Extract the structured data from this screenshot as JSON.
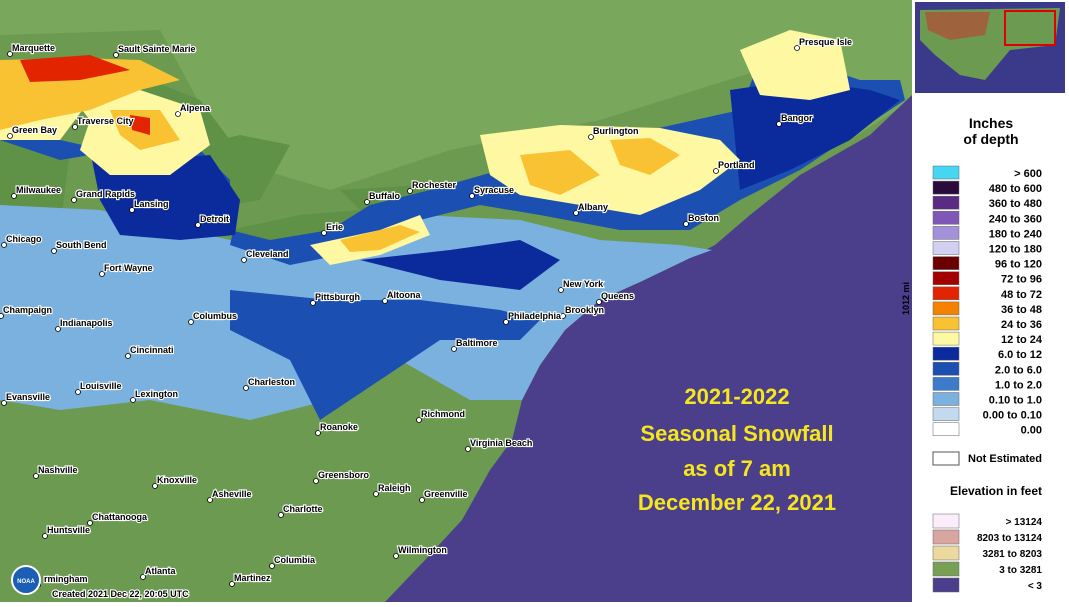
{
  "map": {
    "title_lines": [
      "2021-2022",
      "Seasonal Snowfall",
      "as of 7 am",
      "December 22, 2021"
    ],
    "cities": [
      "Marquette",
      "Sault Sainte Marie",
      "Alpena",
      "Traverse City",
      "Green Bay",
      "Milwaukee",
      "Grand Rapids",
      "Lansing",
      "Detroit",
      "Chicago",
      "South Bend",
      "Fort Wayne",
      "Cleveland",
      "Erie",
      "Buffalo",
      "Rochester",
      "Syracuse",
      "Albany",
      "Burlington",
      "Portland",
      "Bangor",
      "Presque Isle",
      "Boston",
      "New York",
      "Queens",
      "Brooklyn",
      "Philadelphia",
      "Baltimore",
      "Pittsburgh",
      "Altoona",
      "Columbus",
      "Champaign",
      "Indianapolis",
      "Cincinnati",
      "Louisville",
      "Lexington",
      "Evansville",
      "Charleston",
      "Richmond",
      "Roanoke",
      "Virginia Beach",
      "Greensboro",
      "Raleigh",
      "Greenville",
      "Nashville",
      "Knoxville",
      "Asheville",
      "Charlotte",
      "Chattanooga",
      "Huntsville",
      "Wilmington",
      "Columbia",
      "Atlanta",
      "rmingham",
      "Martinez"
    ],
    "scale_label": "1012 mi",
    "footer": "Created 2021 Dec 22, 20:05 UTC",
    "logo": "NOAA"
  },
  "legend": {
    "title_lines": [
      "Inches",
      "of depth"
    ],
    "rows": [
      {
        "label": "> 600",
        "color": "#46d6f2"
      },
      {
        "label": "480 to 600",
        "color": "#2b0b3c"
      },
      {
        "label": "360 to 480",
        "color": "#5b2a82"
      },
      {
        "label": "240 to 360",
        "color": "#7f57b6"
      },
      {
        "label": "180 to 240",
        "color": "#a391da"
      },
      {
        "label": "120 to 180",
        "color": "#d3cff2"
      },
      {
        "label": "96 to 120",
        "color": "#6b0000"
      },
      {
        "label": "72 to 96",
        "color": "#a30000"
      },
      {
        "label": "48 to 72",
        "color": "#e22400"
      },
      {
        "label": "36 to 48",
        "color": "#f28200"
      },
      {
        "label": "24 to 36",
        "color": "#f9c232"
      },
      {
        "label": "12 to 24",
        "color": "#fff8a2"
      },
      {
        "label": "6.0 to 12",
        "color": "#0b2b9c"
      },
      {
        "label": "2.0 to 6.0",
        "color": "#1b50b2"
      },
      {
        "label": "1.0 to 2.0",
        "color": "#3b7bca"
      },
      {
        "label": "0.10 to 1.0",
        "color": "#7bb1de"
      },
      {
        "label": "0.00 to 0.10",
        "color": "#c2d9ee"
      },
      {
        "label": "0.00",
        "color": "#ffffff"
      }
    ],
    "not_estimated": "Not Estimated",
    "elevation_title": "Elevation in feet",
    "elevation_rows": [
      {
        "label": "> 13124",
        "color": "#fbeefa"
      },
      {
        "label": "8203 to 13124",
        "color": "#d9a5a0"
      },
      {
        "label": "3281 to 8203",
        "color": "#ecd9a0"
      },
      {
        "label": "3 to 3281",
        "color": "#77a055"
      },
      {
        "label": "< 3",
        "color": "#4b3f8c"
      }
    ]
  }
}
